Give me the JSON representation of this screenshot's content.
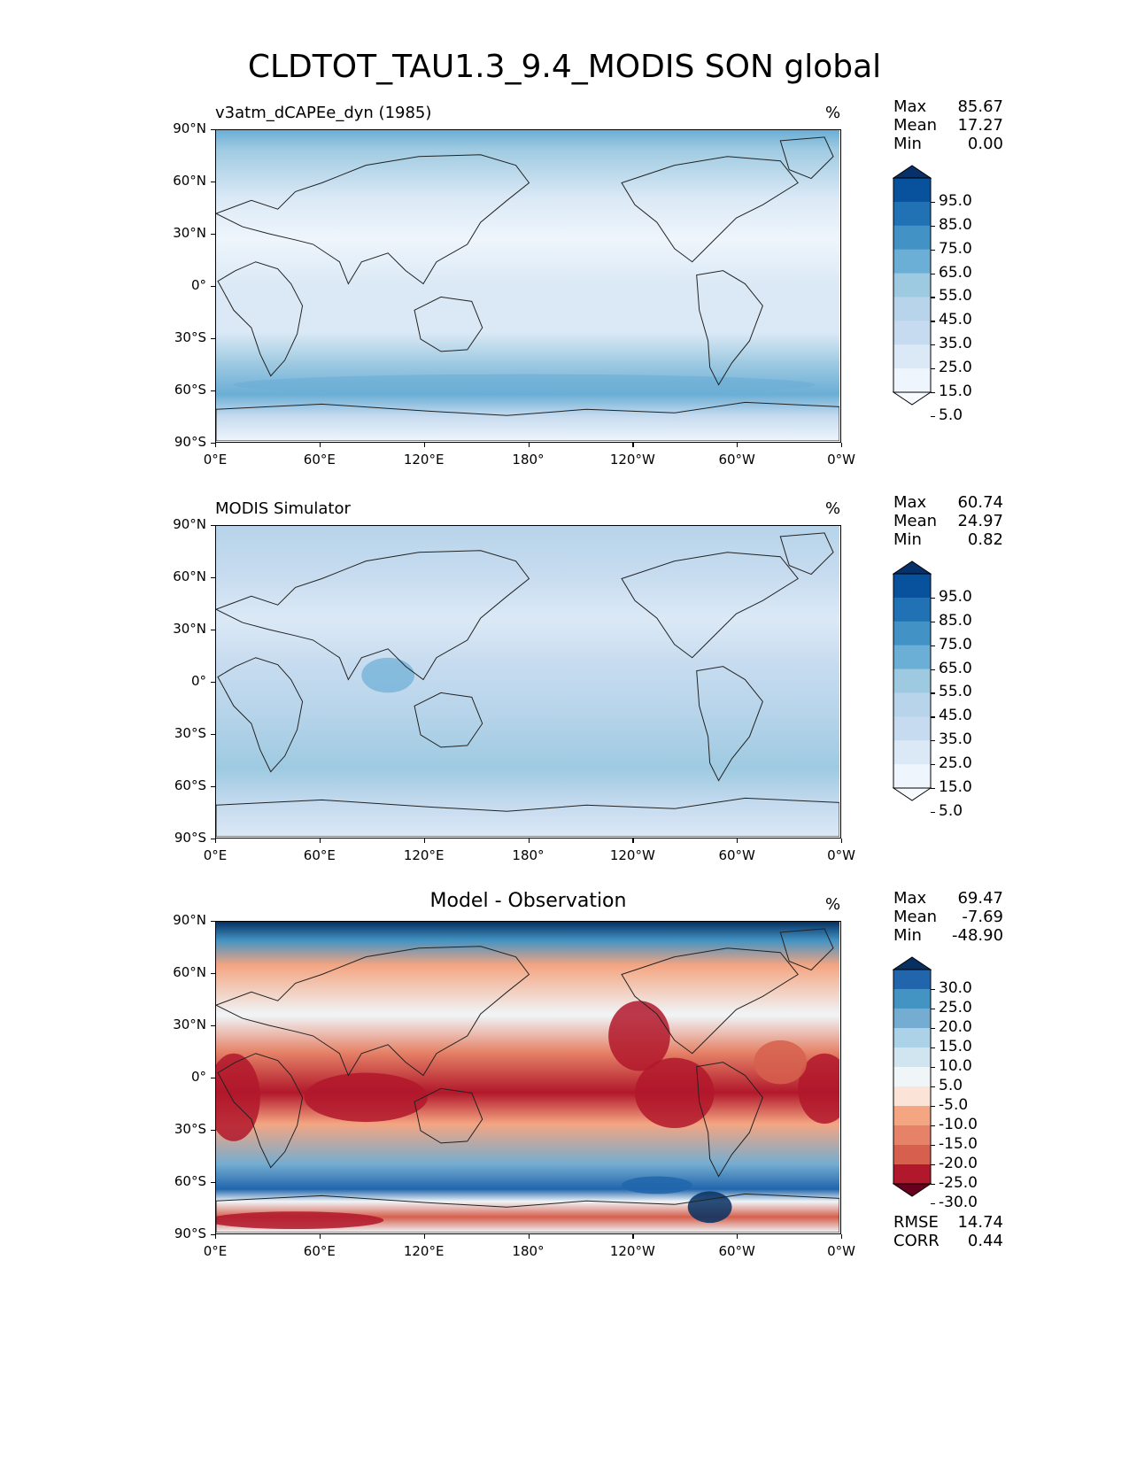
{
  "figure_title": "CLDTOT_TAU1.3_9.4_MODIS SON global",
  "lat_ticks": [
    "90°N",
    "60°N",
    "30°N",
    "0°",
    "30°S",
    "60°S",
    "90°S"
  ],
  "lon_ticks": [
    "0°E",
    "60°E",
    "120°E",
    "180°",
    "120°W",
    "60°W",
    "0°W"
  ],
  "panels": [
    {
      "title": "v3atm_dCAPEe_dyn (1985)",
      "title_style": "left",
      "units": "%",
      "stats": [
        {
          "name": "Max",
          "value": "85.67"
        },
        {
          "name": "Mean",
          "value": "17.27"
        },
        {
          "name": "Min",
          "value": "0.00"
        }
      ],
      "colorbar": {
        "labels": [
          "95.0",
          "85.0",
          "75.0",
          "65.0",
          "55.0",
          "45.0",
          "35.0",
          "25.0",
          "15.0",
          "5.0"
        ],
        "colors": [
          "#08306b",
          "#08519c",
          "#2171b5",
          "#4292c6",
          "#6baed6",
          "#9ecae1",
          "#b7d4ea",
          "#c6dbef",
          "#dbe9f6",
          "#eef5fc",
          "#f7fbff"
        ]
      },
      "extra": []
    },
    {
      "title": "MODIS Simulator",
      "title_style": "left",
      "units": "%",
      "stats": [
        {
          "name": "Max",
          "value": "60.74"
        },
        {
          "name": "Mean",
          "value": "24.97"
        },
        {
          "name": "Min",
          "value": "0.82"
        }
      ],
      "colorbar": {
        "labels": [
          "95.0",
          "85.0",
          "75.0",
          "65.0",
          "55.0",
          "45.0",
          "35.0",
          "25.0",
          "15.0",
          "5.0"
        ],
        "colors": [
          "#08306b",
          "#08519c",
          "#2171b5",
          "#4292c6",
          "#6baed6",
          "#9ecae1",
          "#b7d4ea",
          "#c6dbef",
          "#dbe9f6",
          "#eef5fc",
          "#f7fbff"
        ]
      },
      "extra": []
    },
    {
      "title": "Model - Observation",
      "title_style": "center",
      "units": "%",
      "stats": [
        {
          "name": "Max",
          "value": "69.47"
        },
        {
          "name": "Mean",
          "value": "-7.69"
        },
        {
          "name": "Min",
          "value": "-48.90"
        }
      ],
      "colorbar": {
        "labels": [
          "30.0",
          "25.0",
          "20.0",
          "15.0",
          "10.0",
          "5.0",
          "-5.0",
          "-10.0",
          "-15.0",
          "-20.0",
          "-25.0",
          "-30.0"
        ],
        "colors": [
          "#053061",
          "#2166ac",
          "#4393c3",
          "#74add1",
          "#abd2e6",
          "#d1e5f0",
          "#f0f5f8",
          "#fbe3d7",
          "#f4a582",
          "#e58267",
          "#d6604d",
          "#b2182b",
          "#67001f"
        ]
      },
      "extra": [
        {
          "name": "RMSE",
          "value": "14.74"
        },
        {
          "name": "CORR",
          "value": "0.44"
        }
      ]
    }
  ]
}
